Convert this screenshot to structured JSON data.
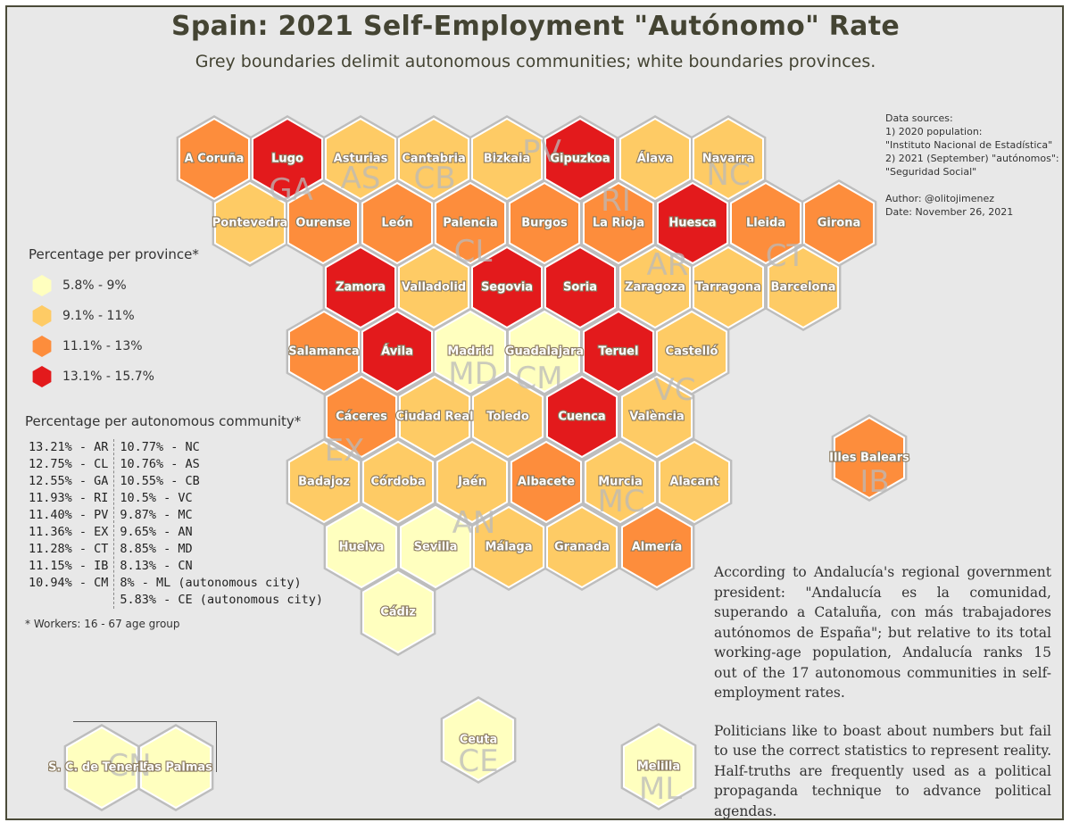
{
  "title": "Spain: 2021 Self-Employment \"Autónomo\" Rate",
  "subtitle": "Grey boundaries delimit autonomous communities; white boundaries provinces.",
  "sources": "Data sources:\n1) 2020 population:\n\"Instituto Nacional de Estadística\"\n2) 2021 (September) \"autónomos\":\n\"Seguridad Social\"\n\nAuthor: @olitojimenez\nDate: November 26, 2021",
  "colors": {
    "c1": "#ffffbf",
    "c2": "#fecb65",
    "c3": "#fd8d3c",
    "c4": "#e31a1c",
    "background": "#e8e8e8",
    "community_border": "#bdbdbd"
  },
  "legend": {
    "title": "Percentage per province*",
    "items": [
      {
        "label": "5.8% - 9%",
        "color": "#ffffbf"
      },
      {
        "label": "9.1% - 11%",
        "color": "#fecb65"
      },
      {
        "label": "11.1% - 13%",
        "color": "#fd8d3c"
      },
      {
        "label": "13.1% - 15.7%",
        "color": "#e31a1c"
      }
    ]
  },
  "community_table": {
    "title": "Percentage per autonomous community*",
    "col1": [
      "13.21% - AR",
      "12.75% - CL",
      "12.55% - GA",
      "11.93% - RI",
      "11.40% - PV",
      "11.36% - EX",
      "11.28% - CT",
      "11.15% - IB",
      "10.94% - CM"
    ],
    "col2": [
      "10.77% - NC",
      "10.76% - AS",
      "10.55% - CB",
      "10.5% - VC",
      "9.87% - MC",
      "9.65% - AN",
      "8.85% - MD",
      "8.13% - CN",
      "8% - ML (autonomous city)",
      "5.83% - CE (autonomous city)"
    ]
  },
  "footnote": "* Workers: 16 - 67 age group",
  "commentary": [
    "According to Andalucía's regional government president: \"Andalucía es la comunidad, superando a Cataluña, con más trabajadores autónomos de España\"; but relative to its total working-age population, Andalucía ranks 15 out of the 17 autonomous communities in self-employment rates.",
    "Politicians like to boast about numbers but fail to use the correct statistics to represent reality. Half-truths are frequently used as a political propaganda technique to advance political agendas."
  ],
  "provinces": [
    {
      "name": "A Coruña",
      "bin": 3
    },
    {
      "name": "Lugo",
      "bin": 4
    },
    {
      "name": "Asturias",
      "bin": 2
    },
    {
      "name": "Cantabria",
      "bin": 2
    },
    {
      "name": "Bizkaia",
      "bin": 2
    },
    {
      "name": "Gipuzkoa",
      "bin": 4
    },
    {
      "name": "Álava",
      "bin": 2
    },
    {
      "name": "Navarra",
      "bin": 2
    },
    {
      "name": "Pontevedra",
      "bin": 2
    },
    {
      "name": "Ourense",
      "bin": 3
    },
    {
      "name": "León",
      "bin": 3
    },
    {
      "name": "Palencia",
      "bin": 3
    },
    {
      "name": "Burgos",
      "bin": 3
    },
    {
      "name": "La Rioja",
      "bin": 3
    },
    {
      "name": "Huesca",
      "bin": 4
    },
    {
      "name": "Lleida",
      "bin": 3
    },
    {
      "name": "Girona",
      "bin": 3
    },
    {
      "name": "Zamora",
      "bin": 4
    },
    {
      "name": "Valladolid",
      "bin": 2
    },
    {
      "name": "Segovia",
      "bin": 4
    },
    {
      "name": "Soria",
      "bin": 4
    },
    {
      "name": "Zaragoza",
      "bin": 2
    },
    {
      "name": "Tarragona",
      "bin": 2
    },
    {
      "name": "Barcelona",
      "bin": 2
    },
    {
      "name": "Salamanca",
      "bin": 3
    },
    {
      "name": "Ávila",
      "bin": 4
    },
    {
      "name": "Madrid",
      "bin": 1
    },
    {
      "name": "Guadalajara",
      "bin": 1
    },
    {
      "name": "Teruel",
      "bin": 4
    },
    {
      "name": "Castelló",
      "bin": 2
    },
    {
      "name": "Cáceres",
      "bin": 3
    },
    {
      "name": "Ciudad Real",
      "bin": 2
    },
    {
      "name": "Toledo",
      "bin": 2
    },
    {
      "name": "Cuenca",
      "bin": 4
    },
    {
      "name": "València",
      "bin": 2
    },
    {
      "name": "Badajoz",
      "bin": 2
    },
    {
      "name": "Córdoba",
      "bin": 2
    },
    {
      "name": "Jaén",
      "bin": 2
    },
    {
      "name": "Albacete",
      "bin": 3
    },
    {
      "name": "Murcia",
      "bin": 2
    },
    {
      "name": "Alacant",
      "bin": 2
    },
    {
      "name": "Huelva",
      "bin": 1
    },
    {
      "name": "Sevilla",
      "bin": 1
    },
    {
      "name": "Málaga",
      "bin": 2
    },
    {
      "name": "Granada",
      "bin": 2
    },
    {
      "name": "Almería",
      "bin": 3
    },
    {
      "name": "Cádiz",
      "bin": 1
    },
    {
      "name": "Illes Balears",
      "bin": 3
    },
    {
      "name": "Ceuta",
      "bin": 1
    },
    {
      "name": "Melilla",
      "bin": 1
    },
    {
      "name": "S. C. de Tenerife",
      "bin": 1
    },
    {
      "name": "Las Palmas",
      "bin": 1
    }
  ],
  "communities": [
    "GA",
    "AS",
    "CB",
    "PV",
    "RI",
    "NC",
    "AR",
    "CT",
    "CL",
    "MD",
    "CM",
    "VC",
    "EX",
    "AN",
    "MC",
    "IB",
    "CN",
    "CE",
    "ML"
  ]
}
